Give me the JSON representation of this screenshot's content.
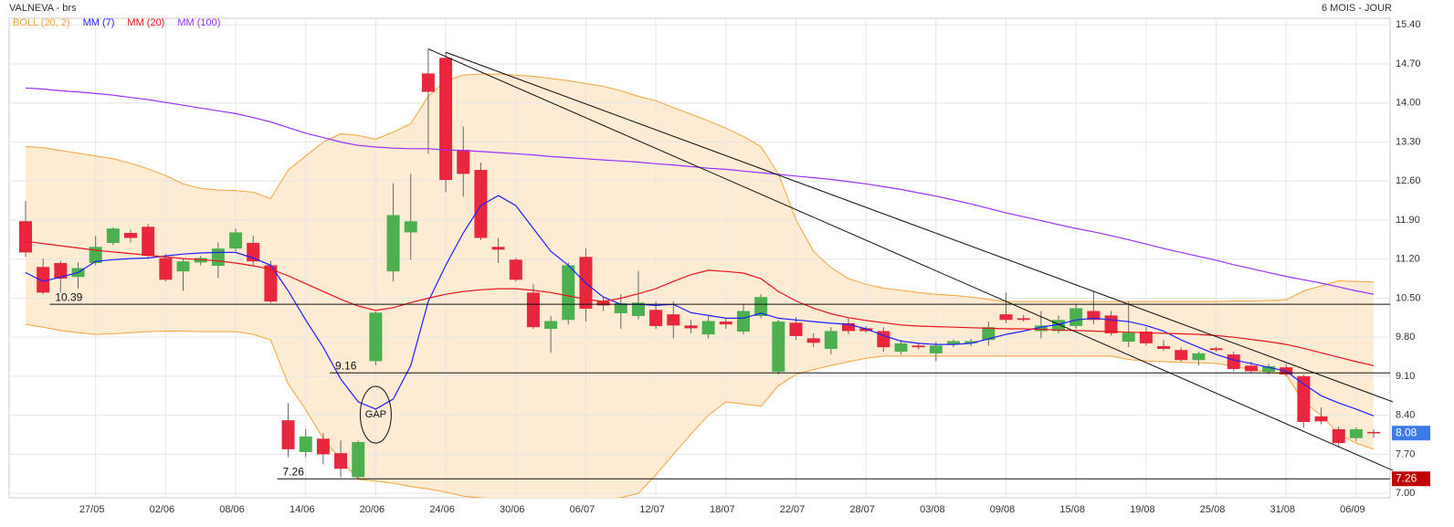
{
  "chart_data": {
    "type": "candlestick",
    "title": "VALNEVA - brs",
    "subtitle": "6 MOIS - JOUR",
    "categories": [
      null,
      null,
      null,
      null,
      "27/05",
      null,
      null,
      null,
      "02/06",
      null,
      null,
      null,
      "08/06",
      null,
      null,
      null,
      "14/06",
      null,
      null,
      null,
      "20/06",
      null,
      null,
      null,
      "24/06",
      null,
      null,
      null,
      "30/06",
      null,
      null,
      null,
      "06/07",
      null,
      null,
      null,
      "12/07",
      null,
      null,
      null,
      "18/07",
      null,
      null,
      null,
      "22/07",
      null,
      null,
      null,
      "28/07",
      null,
      null,
      null,
      "03/08",
      null,
      null,
      null,
      "09/08",
      null,
      null,
      null,
      "15/08",
      null,
      null,
      null,
      "19/08",
      null,
      null,
      null,
      "25/08",
      null,
      null,
      null,
      "31/08",
      null,
      null,
      null,
      "06/09",
      null
    ],
    "candles": {
      "up_color": "#4cb050",
      "down_color": "#e8263d",
      "open": [
        11.88,
        11.06,
        11.13,
        10.88,
        11.13,
        11.49,
        11.67,
        11.78,
        11.22,
        10.98,
        11.14,
        11.08,
        11.39,
        11.49,
        11.09,
        8.31,
        7.74,
        7.98,
        7.72,
        7.29,
        9.37,
        10.98,
        11.68,
        14.53,
        14.81,
        13.16,
        12.8,
        11.42,
        11.19,
        10.6,
        9.95,
        10.11,
        11.24,
        10.44,
        10.23,
        10.18,
        10.29,
        10.21,
        10.01,
        9.85,
        10.08,
        9.9,
        10.18,
        9.18,
        10.06,
        9.78,
        9.59,
        10.05,
        9.96,
        9.91,
        9.54,
        9.65,
        9.51,
        9.67,
        9.69,
        9.75,
        10.21,
        10.14,
        9.91,
        9.91,
        10.0,
        10.27,
        10.19,
        9.72,
        9.9,
        9.64,
        9.57,
        9.39,
        9.6,
        9.49,
        9.29,
        9.18,
        9.26,
        9.1,
        8.38,
        8.15,
        7.99,
        8.1
      ],
      "high": [
        12.24,
        11.21,
        11.17,
        11.14,
        11.62,
        11.77,
        11.73,
        11.83,
        11.29,
        11.22,
        11.26,
        11.5,
        11.75,
        11.62,
        11.17,
        8.62,
        8.15,
        8.08,
        7.95,
        7.95,
        10.26,
        12.56,
        12.73,
        14.97,
        14.91,
        13.58,
        12.93,
        11.58,
        11.22,
        10.75,
        10.18,
        11.14,
        11.39,
        10.52,
        10.57,
        10.99,
        10.44,
        10.44,
        10.11,
        10.18,
        10.13,
        10.39,
        10.57,
        10.11,
        10.16,
        9.87,
        9.98,
        10.14,
        10.0,
        9.98,
        9.75,
        9.7,
        9.72,
        9.76,
        9.77,
        10.08,
        10.6,
        10.2,
        10.27,
        10.19,
        10.39,
        10.63,
        10.27,
        10.44,
        9.98,
        9.75,
        9.62,
        9.54,
        9.63,
        9.54,
        9.36,
        9.32,
        9.32,
        9.13,
        8.54,
        8.2,
        8.18,
        8.15
      ],
      "low": [
        11.24,
        10.57,
        10.6,
        10.67,
        11.09,
        11.45,
        11.5,
        11.22,
        10.8,
        10.63,
        11.09,
        10.86,
        11.34,
        11.09,
        10.41,
        7.65,
        7.65,
        7.52,
        7.29,
        7.26,
        9.3,
        10.8,
        11.19,
        13.09,
        12.4,
        12.32,
        11.54,
        11.13,
        10.8,
        9.95,
        9.52,
        10.03,
        10.08,
        10.27,
        9.95,
        10.12,
        9.95,
        9.78,
        9.87,
        9.78,
        9.95,
        9.85,
        10.14,
        9.13,
        9.75,
        9.62,
        9.49,
        9.85,
        9.88,
        9.54,
        9.49,
        9.58,
        9.37,
        9.62,
        9.64,
        9.65,
        10.05,
        10.08,
        9.78,
        9.87,
        9.95,
        10.03,
        9.83,
        9.62,
        9.65,
        9.56,
        9.36,
        9.29,
        9.54,
        9.19,
        9.16,
        9.13,
        9.1,
        8.18,
        8.24,
        7.82,
        7.93,
        8.0
      ],
      "close": [
        11.32,
        10.6,
        10.85,
        11.04,
        11.42,
        11.75,
        11.58,
        11.26,
        10.83,
        11.16,
        11.22,
        11.39,
        11.68,
        11.16,
        10.44,
        7.79,
        8.02,
        7.7,
        7.44,
        7.92,
        10.24,
        11.99,
        11.88,
        14.2,
        12.62,
        12.73,
        11.58,
        11.37,
        10.83,
        9.98,
        10.09,
        11.09,
        10.31,
        10.37,
        10.41,
        10.42,
        10.0,
        10.01,
        9.96,
        10.09,
        10.03,
        10.27,
        10.52,
        10.08,
        9.82,
        9.7,
        9.91,
        9.91,
        9.91,
        9.62,
        9.69,
        9.62,
        9.65,
        9.73,
        9.73,
        9.98,
        10.11,
        10.11,
        10.01,
        10.11,
        10.32,
        10.11,
        9.87,
        9.88,
        9.69,
        9.59,
        9.39,
        9.51,
        9.57,
        9.23,
        9.19,
        9.28,
        9.13,
        8.28,
        8.29,
        7.9,
        8.15,
        8.08
      ],
      "last_price_color": "#3d7be8"
    },
    "bollinger": {
      "name": "BOLL (20, 2)",
      "color": "#f5a43a",
      "fill": "#fdebd3",
      "upper": [
        13.22,
        13.2,
        13.15,
        13.1,
        13.05,
        13.0,
        12.92,
        12.82,
        12.7,
        12.55,
        12.47,
        12.44,
        12.43,
        12.4,
        12.29,
        12.8,
        13.05,
        13.3,
        13.45,
        13.42,
        13.35,
        13.48,
        13.63,
        14.12,
        14.4,
        14.5,
        14.52,
        14.52,
        14.5,
        14.48,
        14.44,
        14.4,
        14.35,
        14.3,
        14.22,
        14.12,
        14.04,
        13.92,
        13.8,
        13.68,
        13.55,
        13.4,
        13.22,
        12.73,
        11.91,
        11.34,
        11.05,
        10.85,
        10.75,
        10.68,
        10.64,
        10.6,
        10.57,
        10.55,
        10.52,
        10.48,
        10.44,
        10.44,
        10.44,
        10.44,
        10.44,
        10.44,
        10.44,
        10.44,
        10.44,
        10.44,
        10.44,
        10.44,
        10.44,
        10.45,
        10.45,
        10.46,
        10.47,
        10.63,
        10.72,
        10.81,
        10.8,
        10.79
      ],
      "lower": [
        10.03,
        9.98,
        9.92,
        9.88,
        9.85,
        9.86,
        9.88,
        9.9,
        9.91,
        9.91,
        9.9,
        9.9,
        9.9,
        9.85,
        9.75,
        8.96,
        8.5,
        7.98,
        7.6,
        7.25,
        7.22,
        7.18,
        7.12,
        7.08,
        7.02,
        6.95,
        6.92,
        6.9,
        6.88,
        6.87,
        6.86,
        6.86,
        6.86,
        6.88,
        6.92,
        7.0,
        7.33,
        7.7,
        8.06,
        8.4,
        8.64,
        8.6,
        8.56,
        8.93,
        9.13,
        9.22,
        9.29,
        9.36,
        9.42,
        9.46,
        9.46,
        9.46,
        9.46,
        9.46,
        9.46,
        9.46,
        9.46,
        9.46,
        9.46,
        9.46,
        9.46,
        9.46,
        9.46,
        9.4,
        9.37,
        9.36,
        9.35,
        9.34,
        9.33,
        9.28,
        9.22,
        9.17,
        9.13,
        8.64,
        8.4,
        8.06,
        7.9,
        7.79
      ]
    },
    "moving_averages": [
      {
        "name": "MM (7)",
        "color": "#1f1fff",
        "values": [
          10.96,
          10.8,
          10.88,
          10.96,
          11.16,
          11.19,
          11.21,
          11.22,
          11.26,
          11.29,
          11.31,
          11.32,
          11.32,
          11.22,
          11.09,
          10.63,
          10.11,
          9.62,
          9.05,
          8.64,
          8.51,
          8.69,
          9.29,
          10.44,
          11.09,
          11.67,
          12.16,
          12.34,
          12.16,
          11.75,
          11.34,
          11.09,
          10.77,
          10.52,
          10.39,
          10.39,
          10.37,
          10.39,
          10.24,
          10.19,
          10.14,
          10.14,
          10.23,
          10.14,
          10.11,
          10.08,
          10.05,
          10.03,
          9.95,
          9.83,
          9.73,
          9.69,
          9.67,
          9.67,
          9.69,
          9.77,
          9.85,
          9.91,
          9.98,
          10.03,
          10.11,
          10.14,
          10.11,
          10.08,
          10.01,
          9.91,
          9.75,
          9.62,
          9.49,
          9.39,
          9.33,
          9.26,
          9.19,
          8.96,
          8.75,
          8.62,
          8.51,
          8.39
        ]
      },
      {
        "name": "MM (20)",
        "color": "#e8151b",
        "values": [
          11.52,
          11.48,
          11.44,
          11.4,
          11.36,
          11.33,
          11.3,
          11.27,
          11.24,
          11.21,
          11.19,
          11.17,
          11.13,
          11.08,
          11.02,
          10.9,
          10.76,
          10.62,
          10.48,
          10.36,
          10.28,
          10.33,
          10.42,
          10.5,
          10.57,
          10.62,
          10.65,
          10.67,
          10.67,
          10.64,
          10.6,
          10.54,
          10.48,
          10.44,
          10.5,
          10.58,
          10.67,
          10.8,
          10.92,
          11.0,
          10.98,
          10.95,
          10.85,
          10.62,
          10.45,
          10.32,
          10.22,
          10.15,
          10.1,
          10.06,
          10.02,
          10.0,
          9.99,
          9.98,
          9.97,
          9.96,
          9.95,
          9.95,
          9.94,
          9.93,
          9.92,
          9.91,
          9.9,
          9.89,
          9.88,
          9.87,
          9.86,
          9.85,
          9.83,
          9.8,
          9.76,
          9.72,
          9.67,
          9.6,
          9.52,
          9.44,
          9.36,
          9.29
        ]
      },
      {
        "name": "MM (100)",
        "color": "#9b30ff",
        "values": [
          14.27,
          14.25,
          14.22,
          14.2,
          14.17,
          14.14,
          14.1,
          14.06,
          14.01,
          13.96,
          13.91,
          13.86,
          13.81,
          13.74,
          13.66,
          13.56,
          13.46,
          13.38,
          13.3,
          13.24,
          13.21,
          13.19,
          13.18,
          13.18,
          13.16,
          13.15,
          13.13,
          13.11,
          13.09,
          13.07,
          13.04,
          13.02,
          13.0,
          12.98,
          12.96,
          12.94,
          12.91,
          12.89,
          12.86,
          12.83,
          12.81,
          12.78,
          12.75,
          12.72,
          12.69,
          12.66,
          12.63,
          12.59,
          12.55,
          12.5,
          12.45,
          12.39,
          12.33,
          12.26,
          12.19,
          12.11,
          12.03,
          11.96,
          11.89,
          11.82,
          11.75,
          11.69,
          11.62,
          11.55,
          11.47,
          11.39,
          11.32,
          11.25,
          11.18,
          11.1,
          11.03,
          10.96,
          10.89,
          10.83,
          10.77,
          10.7,
          10.63,
          10.57
        ]
      }
    ],
    "trendlines": [
      {
        "x": [
          23,
          78.1
        ],
        "values": [
          14.97,
          7.41
        ]
      },
      {
        "x": [
          24,
          78.1
        ],
        "values": [
          14.91,
          8.64
        ]
      }
    ],
    "levels": [
      {
        "value": 10.39,
        "from": 2
      },
      {
        "value": 9.16,
        "from": 18
      },
      {
        "value": 7.26,
        "from": 15,
        "tag_color": "#c00000"
      }
    ],
    "annotations": [
      {
        "text": "GAP",
        "x": 20,
        "value": 8.41
      }
    ],
    "ylim": [
      6.92,
      15.52
    ],
    "yticks": [
      {
        "value": 15.4,
        "label": "15.40"
      },
      {
        "value": 14.7,
        "label": "14.70"
      },
      {
        "value": 14,
        "label": "14.00"
      },
      {
        "value": 13.3,
        "label": "13.30"
      },
      {
        "value": 12.6,
        "label": "12.60"
      },
      {
        "value": 11.9,
        "label": "11.90"
      },
      {
        "value": 11.2,
        "label": "11.20"
      },
      {
        "value": 10.5,
        "label": "10.50"
      },
      {
        "value": 9.8,
        "label": "9.80"
      },
      {
        "value": 9.1,
        "label": "9.10"
      },
      {
        "value": 8.4,
        "label": "8.40"
      },
      {
        "value": 7.7,
        "label": "7.70"
      },
      {
        "value": 7,
        "label": "7.00"
      }
    ],
    "grid": true
  }
}
